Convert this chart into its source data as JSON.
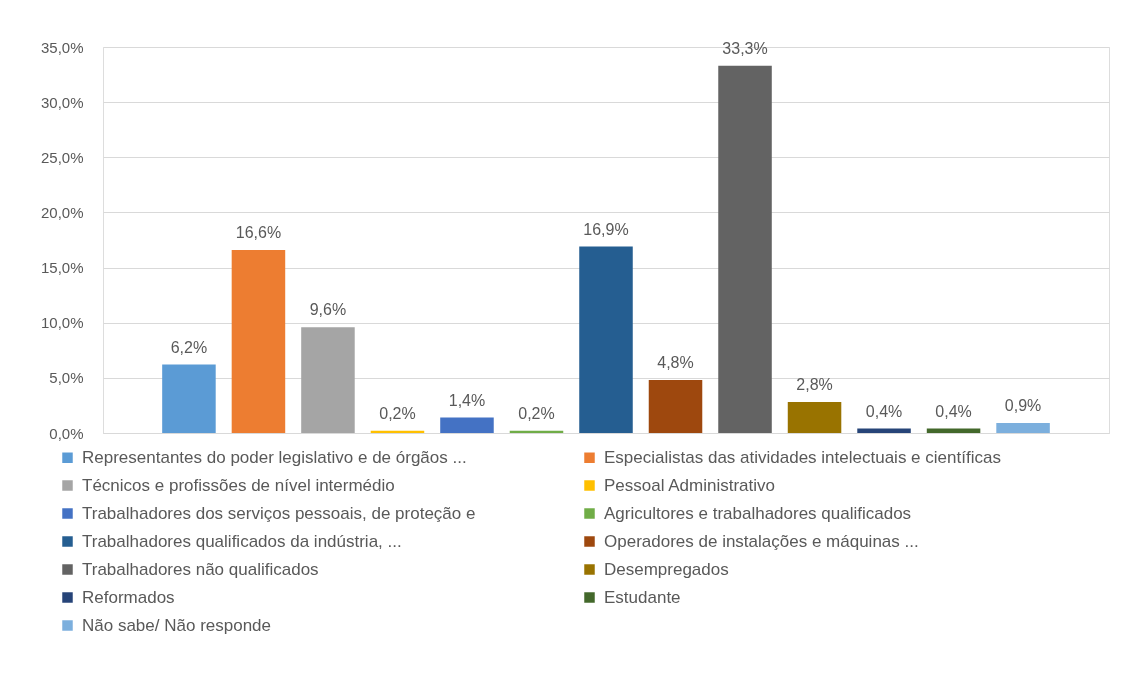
{
  "chart_data": {
    "type": "bar",
    "categories": [
      null
    ],
    "series": [
      {
        "name": "Representantes do poder legislativo e de órgãos ...",
        "color": "#5b9bd5",
        "values": [
          6.2
        ],
        "value_labels": [
          "6,2%"
        ]
      },
      {
        "name": "Especialistas das atividades intelectuais e científicas",
        "color": "#ed7d31",
        "values": [
          16.6
        ],
        "value_labels": [
          "16,6%"
        ]
      },
      {
        "name": "Técnicos e profissões de nível intermédio",
        "color": "#a5a5a5",
        "values": [
          9.6
        ],
        "value_labels": [
          "9,6%"
        ]
      },
      {
        "name": "Pessoal Administrativo",
        "color": "#ffc000",
        "values": [
          0.2
        ],
        "value_labels": [
          "0,2%"
        ]
      },
      {
        "name": "Trabalhadores dos serviços pessoais, de proteção e",
        "color": "#4472c4",
        "values": [
          1.4
        ],
        "value_labels": [
          "1,4%"
        ]
      },
      {
        "name": "Agricultores e trabalhadores qualificados",
        "color": "#70ad47",
        "values": [
          0.2
        ],
        "value_labels": [
          "0,2%"
        ]
      },
      {
        "name": "Trabalhadores qualificados da indústria, ...",
        "color": "#255e91",
        "values": [
          16.9
        ],
        "value_labels": [
          "16,9%"
        ]
      },
      {
        "name": "Operadores de instalações e máquinas ...",
        "color": "#9e480e",
        "values": [
          4.8
        ],
        "value_labels": [
          "4,8%"
        ]
      },
      {
        "name": "Trabalhadores não qualificados",
        "color": "#636363",
        "values": [
          33.3
        ],
        "value_labels": [
          "33,3%"
        ]
      },
      {
        "name": "Desempregados",
        "color": "#997300",
        "values": [
          2.8
        ],
        "value_labels": [
          "2,8%"
        ]
      },
      {
        "name": "Reformados",
        "color": "#264478",
        "values": [
          0.4
        ],
        "value_labels": [
          "0,4%"
        ]
      },
      {
        "name": "Estudante",
        "color": "#43682b",
        "values": [
          0.4
        ],
        "value_labels": [
          "0,4%"
        ]
      },
      {
        "name": "Não sabe/ Não responde",
        "color": "#7cafdd",
        "values": [
          0.9
        ],
        "value_labels": [
          "0,9%"
        ]
      }
    ],
    "ylim": [
      0,
      35
    ],
    "yticks": [
      {
        "value": 0,
        "label": "0,0%"
      },
      {
        "value": 5,
        "label": "5,0%"
      },
      {
        "value": 10,
        "label": "10,0%"
      },
      {
        "value": 15,
        "label": "15,0%"
      },
      {
        "value": 20,
        "label": "20,0%"
      },
      {
        "value": 25,
        "label": "25,0%"
      },
      {
        "value": 30,
        "label": "30,0%"
      },
      {
        "value": 35,
        "label": "35,0%"
      }
    ],
    "grid": "y",
    "legend": "bottom"
  }
}
